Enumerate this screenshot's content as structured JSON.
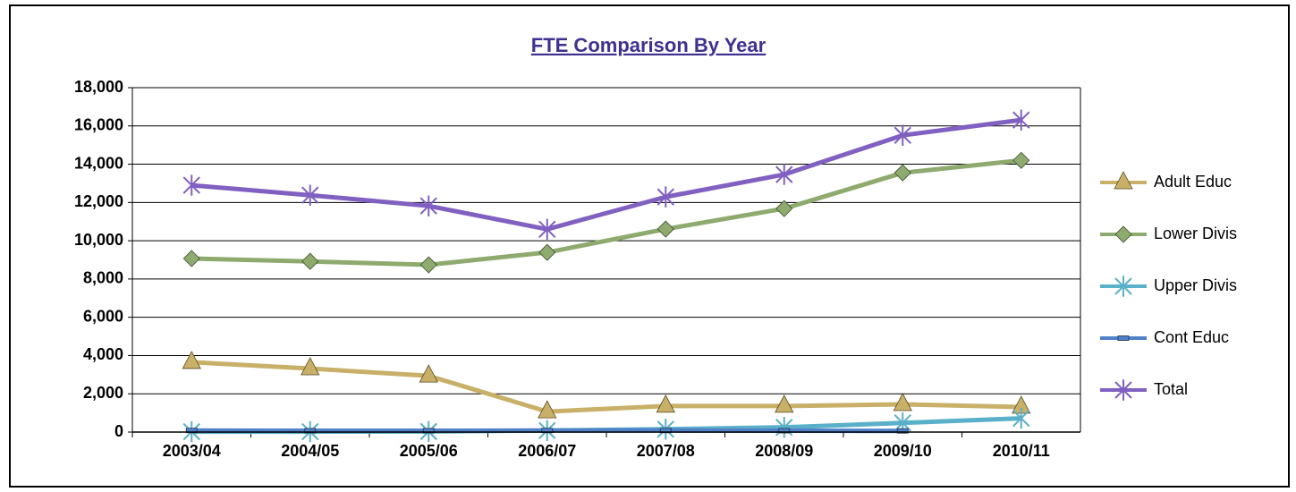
{
  "chart_data": {
    "type": "line",
    "title": "FTE Comparison By Year",
    "categories": [
      "2003/04",
      "2004/05",
      "2005/06",
      "2006/07",
      "2007/08",
      "2008/09",
      "2009/10",
      "2010/11"
    ],
    "series": [
      {
        "name": "Adult Educ",
        "color": "#c8b068",
        "marker": "triangle",
        "values": [
          3650,
          3320,
          2940,
          1070,
          1360,
          1360,
          1450,
          1310
        ]
      },
      {
        "name": "Lower Divis",
        "color": "#8faa6e",
        "marker": "diamond",
        "values": [
          9070,
          8920,
          8740,
          9390,
          10610,
          11680,
          13550,
          14200
        ]
      },
      {
        "name": "Upper Divis",
        "color": "#5ab0c8",
        "marker": "asterisk",
        "values": [
          20,
          20,
          30,
          80,
          150,
          250,
          480,
          720
        ]
      },
      {
        "name": "Cont Educ",
        "color": "#5080c8",
        "marker": "dash",
        "values": [
          80,
          70,
          70,
          80,
          80,
          70,
          60,
          null
        ]
      },
      {
        "name": "Total",
        "color": "#8060c0",
        "marker": "asterisk",
        "values": [
          12900,
          12380,
          11820,
          10600,
          12290,
          13460,
          15510,
          16310
        ]
      }
    ],
    "ylim": [
      0,
      18000
    ],
    "yticks": [
      0,
      {
        "value": 2000,
        "label": "2,000"
      },
      {
        "value": 4000,
        "label": "4,000"
      },
      {
        "value": 6000,
        "label": "6,000"
      },
      {
        "value": 8000,
        "label": "8,000"
      },
      {
        "value": 10000,
        "label": "10,000"
      },
      {
        "value": 12000,
        "label": "12,000"
      },
      {
        "value": 14000,
        "label": "14,000"
      },
      {
        "value": 16000,
        "label": "16,000"
      },
      {
        "value": 18000,
        "label": "18,000"
      }
    ],
    "grid": true,
    "legend": "right"
  }
}
